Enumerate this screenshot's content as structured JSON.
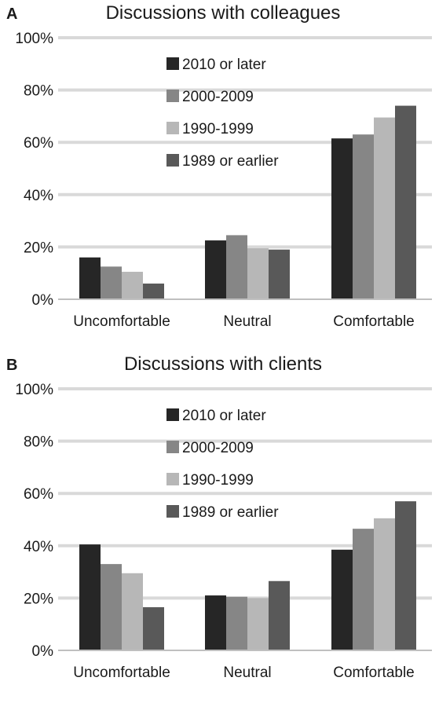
{
  "chart_data": [
    {
      "type": "bar",
      "panel_label": "A",
      "title": "Discussions with colleagues",
      "categories": [
        "Uncomfortable",
        "Neutral",
        "Comfortable"
      ],
      "series": [
        {
          "name": "2010 or later",
          "values": [
            16,
            22.5,
            61.5
          ]
        },
        {
          "name": "2000-2009",
          "values": [
            12.5,
            24.5,
            63
          ]
        },
        {
          "name": "1990-1999",
          "values": [
            10.5,
            19.5,
            69.5
          ]
        },
        {
          "name": "1989 or earlier",
          "values": [
            6,
            19,
            74
          ]
        }
      ],
      "ylim": [
        0,
        100
      ],
      "yticks": [
        "0%",
        "20%",
        "40%",
        "60%",
        "80%",
        "100%"
      ],
      "colors": [
        "#262626",
        "#868686",
        "#b7b7b7",
        "#595959"
      ],
      "grid": true,
      "legend": "top-left-center"
    },
    {
      "type": "bar",
      "panel_label": "B",
      "title": "Discussions with clients",
      "categories": [
        "Uncomfortable",
        "Neutral",
        "Comfortable"
      ],
      "series": [
        {
          "name": "2010 or later",
          "values": [
            40.5,
            21,
            38.5
          ]
        },
        {
          "name": "2000-2009",
          "values": [
            33,
            20.5,
            46.5
          ]
        },
        {
          "name": "1990-1999",
          "values": [
            29.5,
            20,
            50.5
          ]
        },
        {
          "name": "1989 or earlier",
          "values": [
            16.5,
            26.5,
            57
          ]
        }
      ],
      "ylim": [
        0,
        100
      ],
      "yticks": [
        "0%",
        "20%",
        "40%",
        "60%",
        "80%",
        "100%"
      ],
      "colors": [
        "#262626",
        "#868686",
        "#b7b7b7",
        "#595959"
      ],
      "grid": true,
      "legend": "top-left-center"
    }
  ]
}
